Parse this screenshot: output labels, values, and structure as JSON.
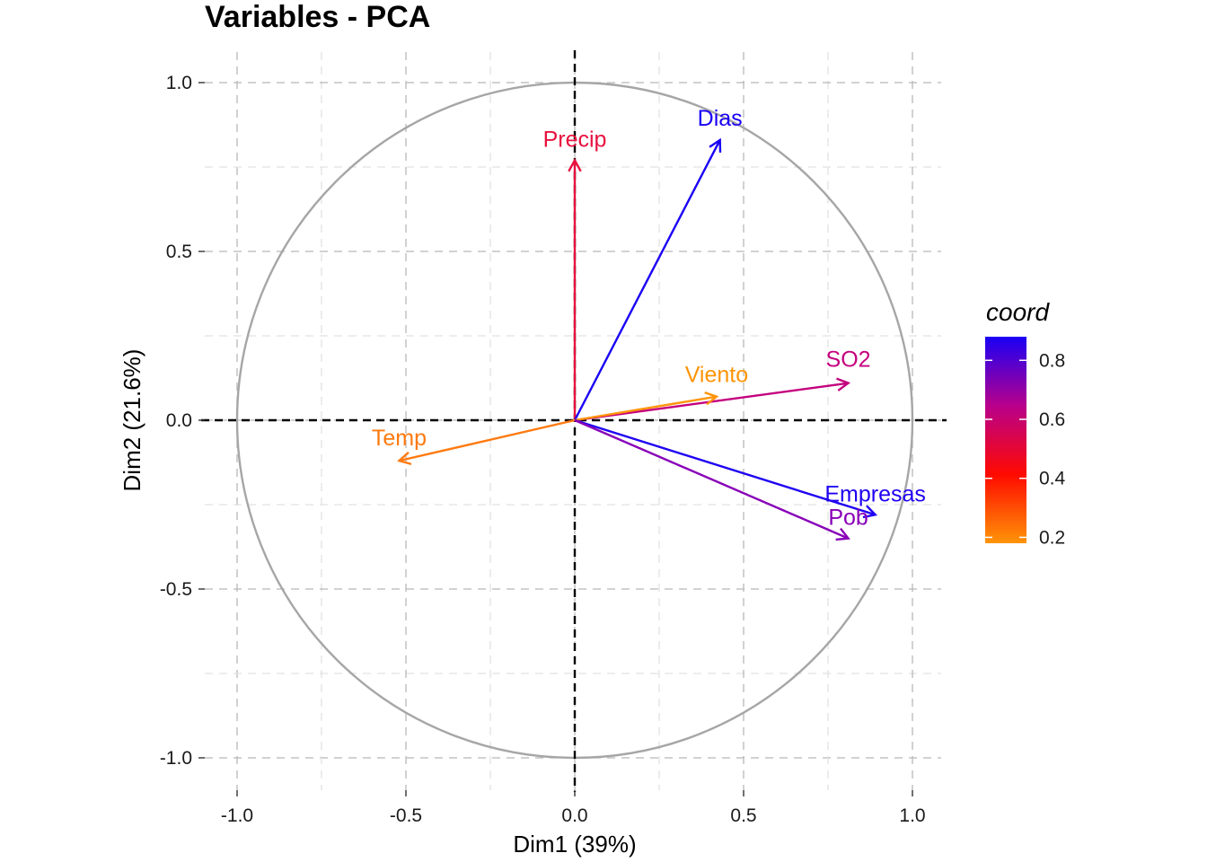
{
  "chart_data": {
    "type": "scatter",
    "title": "Variables - PCA",
    "xlabel": "Dim1 (39%)",
    "ylabel": "Dim2 (21.6%)",
    "xlim": [
      -1.0,
      1.0
    ],
    "ylim": [
      -1.0,
      1.0
    ],
    "x_ticks": [
      "-1.0",
      "-0.5",
      "0.0",
      "0.5",
      "1.0"
    ],
    "y_ticks": [
      "1.0",
      "0.5",
      "0.0",
      "-0.5",
      "-1.0"
    ],
    "x_tick_values": [
      -1.0,
      -0.5,
      0.0,
      0.5,
      1.0
    ],
    "y_tick_values": [
      1.0,
      0.5,
      0.0,
      -0.5,
      -1.0
    ],
    "grid": true,
    "correlation_circle": true,
    "variables": [
      {
        "name": "Precip",
        "x": 0.0,
        "y": 0.77,
        "coord": 0.59,
        "color": "#E8123F"
      },
      {
        "name": "Dias",
        "x": 0.43,
        "y": 0.83,
        "coord": 0.88,
        "color": "#1A00F5"
      },
      {
        "name": "SO2",
        "x": 0.81,
        "y": 0.11,
        "coord": 0.67,
        "color": "#C4007E"
      },
      {
        "name": "Viento",
        "x": 0.42,
        "y": 0.07,
        "coord": 0.18,
        "color": "#FF9408"
      },
      {
        "name": "Temp",
        "x": -0.52,
        "y": -0.12,
        "coord": 0.28,
        "color": "#FF7A10"
      },
      {
        "name": "Empresas",
        "x": 0.89,
        "y": -0.28,
        "coord": 0.87,
        "color": "#1E00F2"
      },
      {
        "name": "Pob",
        "x": 0.81,
        "y": -0.35,
        "coord": 0.78,
        "color": "#8800B8"
      }
    ],
    "legend": {
      "title": "coord",
      "placement": "right",
      "ticks": [
        "0.8",
        "0.6",
        "0.4",
        "0.2"
      ],
      "tick_values": [
        0.8,
        0.6,
        0.4,
        0.2
      ],
      "range": [
        0.18,
        0.88
      ],
      "gradient": [
        "#FF9408",
        "#FF0A00",
        "#B8008C",
        "#1A00F5"
      ]
    }
  }
}
